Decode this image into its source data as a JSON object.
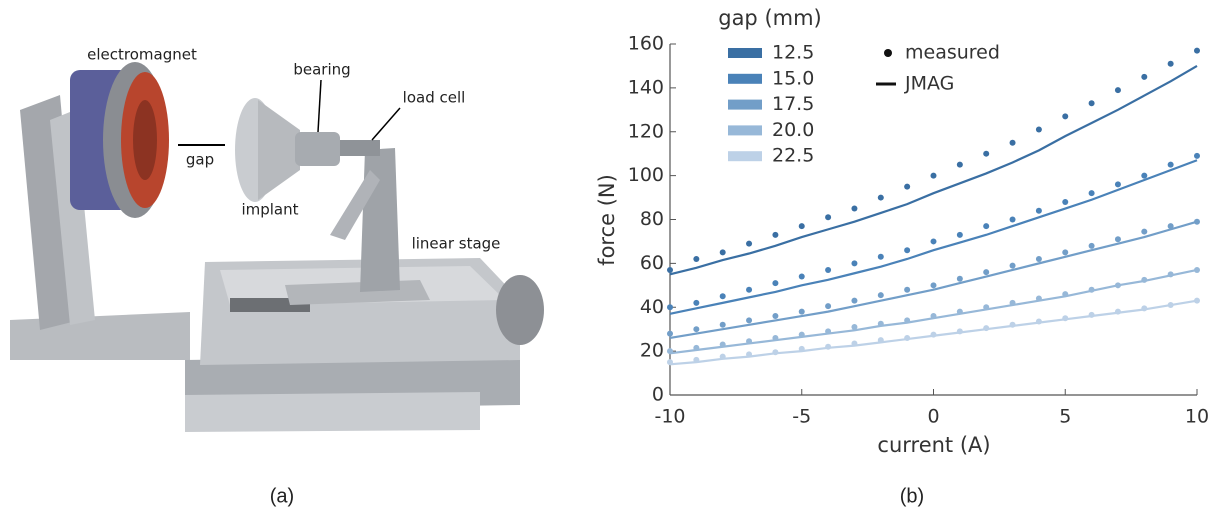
{
  "panel_a": {
    "labels": [
      "electromagnet",
      "bearing",
      "load cell",
      "gap",
      "implant",
      "linear stage"
    ],
    "caption": "(a)"
  },
  "chart_data": {
    "type": "line",
    "caption": "(b)",
    "xlabel": "current (A)",
    "ylabel": "force (N)",
    "legend_title": "gap (mm)",
    "style_legend": [
      "measured",
      "JMAG"
    ],
    "x": [
      -10,
      -9,
      -8,
      -7,
      -6,
      -5,
      -4,
      -3,
      -2,
      -1,
      0,
      1,
      2,
      3,
      4,
      5,
      6,
      7,
      8,
      9,
      10
    ],
    "xlim": [
      -10,
      10
    ],
    "xticks": [
      -10,
      -5,
      0,
      5,
      10
    ],
    "ylim": [
      0,
      160
    ],
    "yticks": [
      0,
      20,
      40,
      60,
      80,
      100,
      120,
      140,
      160
    ],
    "series": [
      {
        "name": "12.5",
        "color": "#3a6fa3",
        "measured": [
          57,
          62,
          65,
          69,
          73,
          77,
          81,
          85,
          90,
          95,
          100,
          105,
          110,
          115,
          121,
          127,
          133,
          139,
          145,
          151,
          157
        ],
        "jmag": [
          55,
          58,
          61.5,
          64.5,
          68,
          72,
          75.5,
          79,
          83,
          87,
          92,
          96.5,
          101,
          106,
          111.5,
          118,
          124,
          130,
          136.5,
          143,
          150
        ]
      },
      {
        "name": "15.0",
        "color": "#4a82b8",
        "measured": [
          40,
          42,
          45,
          48,
          51,
          54,
          57,
          60,
          63,
          66,
          70,
          73,
          77,
          80,
          84,
          88,
          92,
          96,
          100,
          105,
          109
        ],
        "jmag": [
          37,
          39.5,
          42,
          44.5,
          47,
          50,
          52.5,
          55.5,
          58.5,
          62,
          66,
          69.5,
          73,
          77,
          81,
          85,
          89,
          93.5,
          98,
          102.5,
          107
        ]
      },
      {
        "name": "17.5",
        "color": "#729ec8",
        "measured": [
          28,
          30,
          32,
          34,
          36,
          38,
          40.5,
          43,
          45.5,
          48,
          50,
          53,
          56,
          59,
          62,
          65,
          68,
          71,
          74.5,
          77,
          79
        ],
        "jmag": [
          26,
          28,
          30,
          32,
          34,
          36,
          38,
          40.5,
          43,
          45.5,
          48,
          51,
          54,
          57,
          60,
          63,
          66,
          69,
          72,
          75.5,
          79
        ]
      },
      {
        "name": "20.0",
        "color": "#97b8d8",
        "measured": [
          20,
          21.5,
          23,
          24.5,
          26,
          27.5,
          29,
          31,
          32.5,
          34,
          36,
          38,
          40,
          42,
          44,
          46,
          48,
          50,
          52.5,
          55,
          57
        ],
        "jmag": [
          19,
          20.5,
          22,
          23.5,
          25,
          26.5,
          28,
          29.5,
          31.5,
          33,
          35,
          37,
          39,
          41,
          43,
          45,
          47.5,
          50,
          52,
          54.5,
          57
        ]
      },
      {
        "name": "22.5",
        "color": "#bdd1e7",
        "measured": [
          15,
          16,
          17.5,
          18.5,
          19.5,
          21,
          22,
          23.5,
          25,
          26,
          27.5,
          29,
          30.5,
          32,
          33.5,
          35,
          36.5,
          38,
          39.5,
          41,
          43
        ],
        "jmag": [
          14,
          15,
          16.5,
          17.5,
          19,
          20,
          21.5,
          22.5,
          24,
          25.5,
          27,
          28.5,
          30,
          31.5,
          33,
          34.5,
          36,
          37.5,
          39,
          41,
          43
        ]
      }
    ]
  }
}
